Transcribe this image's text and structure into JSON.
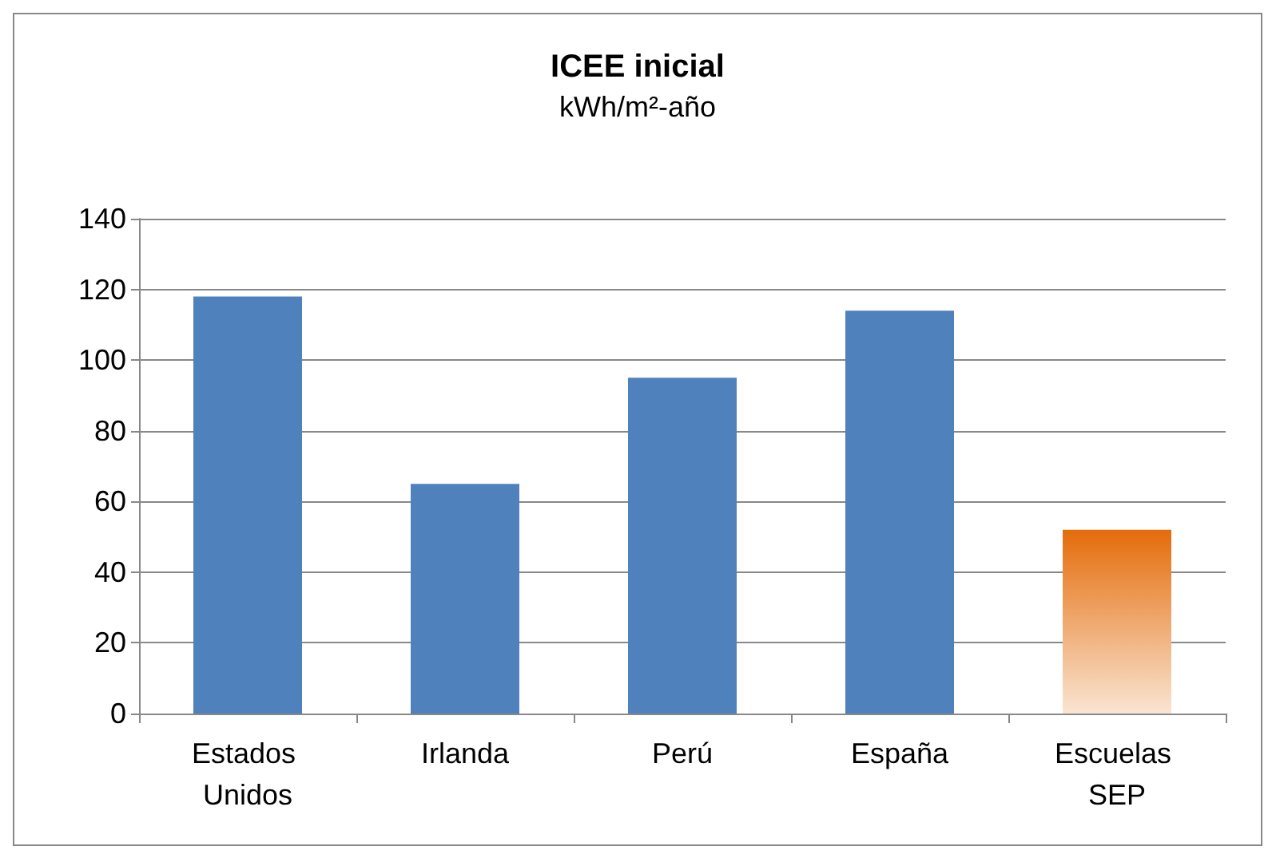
{
  "chart_data": {
    "type": "bar",
    "title": "ICEE inicial",
    "subtitle": "kWh/m²-año",
    "categories": [
      "Estados Unidos",
      "Irlanda",
      "Perú",
      "España",
      "Escuelas SEP"
    ],
    "values": [
      118,
      65,
      95,
      114,
      52
    ],
    "colors": [
      "#4f81bd",
      "#4f81bd",
      "#4f81bd",
      "#4f81bd",
      "#e46c0a"
    ],
    "ylim": [
      0,
      140
    ],
    "yticks": [
      0,
      20,
      40,
      60,
      80,
      100,
      120,
      140
    ],
    "grid": "y"
  }
}
